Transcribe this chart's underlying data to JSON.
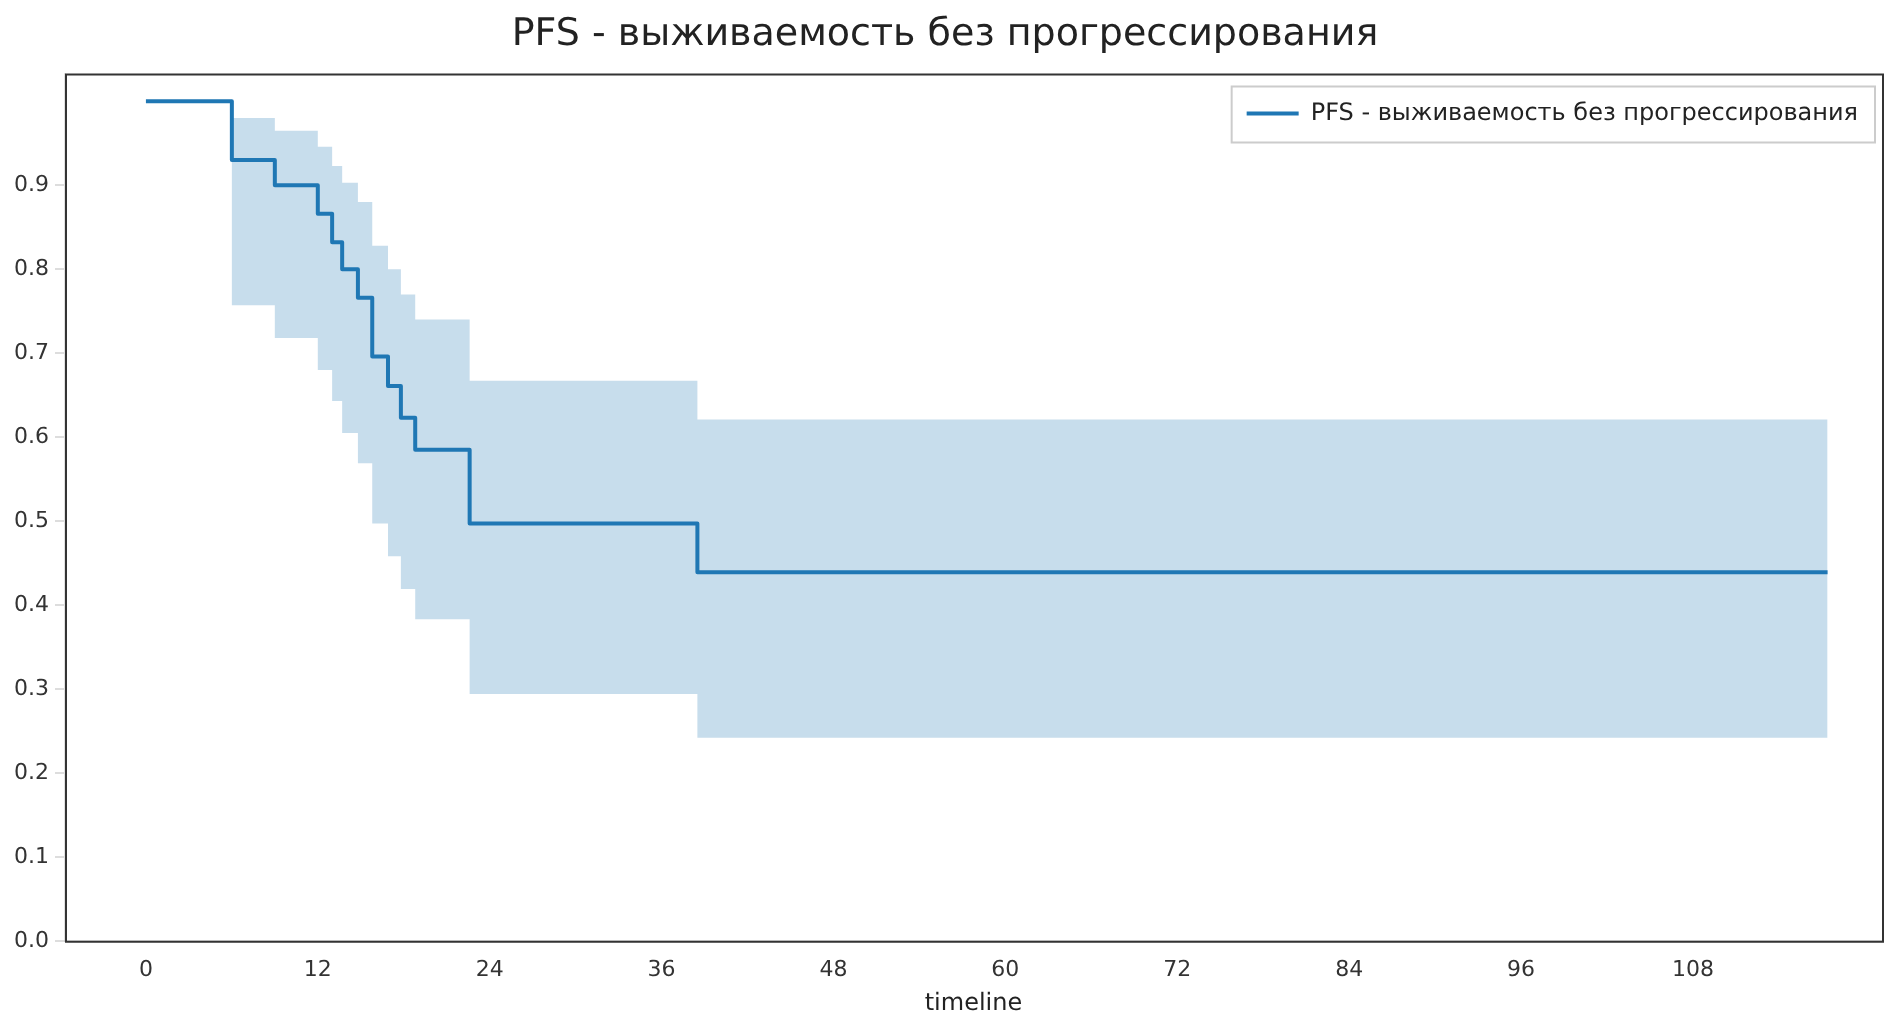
{
  "chart_data": {
    "type": "step",
    "title": "PFS - выживаемость без прогрессирования",
    "xlabel": "timeline",
    "xlim": [
      -5.65,
      121.2
    ],
    "xticks": [
      0,
      12,
      24,
      36,
      48,
      60,
      72,
      84,
      96,
      108
    ],
    "ylim": [
      0,
      1.033
    ],
    "yticks": [
      {
        "value": 0,
        "label": "0.0"
      },
      0.1,
      0.2,
      0.3,
      0.4,
      0.5,
      0.6,
      0.7,
      0.8,
      0.9
    ],
    "series": [
      {
        "name": "PFS - выживаемость без прогрессирования",
        "color": "#1f77b4",
        "x": [
          0,
          6,
          9,
          12,
          13,
          13.7,
          14.8,
          15.8,
          16.9,
          17.8,
          18.8,
          22.6,
          38.5,
          117.4
        ],
        "values": [
          1.0,
          0.93,
          0.9,
          0.866,
          0.832,
          0.8,
          0.766,
          0.696,
          0.661,
          0.623,
          0.585,
          0.497,
          0.439,
          0.439
        ],
        "upper": [
          1.0,
          0.98,
          0.965,
          0.946,
          0.923,
          0.903,
          0.88,
          0.828,
          0.8,
          0.77,
          0.74,
          0.667,
          0.621,
          0.621
        ],
        "lower": [
          1.0,
          0.757,
          0.718,
          0.68,
          0.643,
          0.605,
          0.569,
          0.497,
          0.458,
          0.419,
          0.383,
          0.294,
          0.242,
          0.242
        ]
      }
    ],
    "grid": false,
    "legend": "top right",
    "line_style": "solid",
    "marker": "none"
  }
}
